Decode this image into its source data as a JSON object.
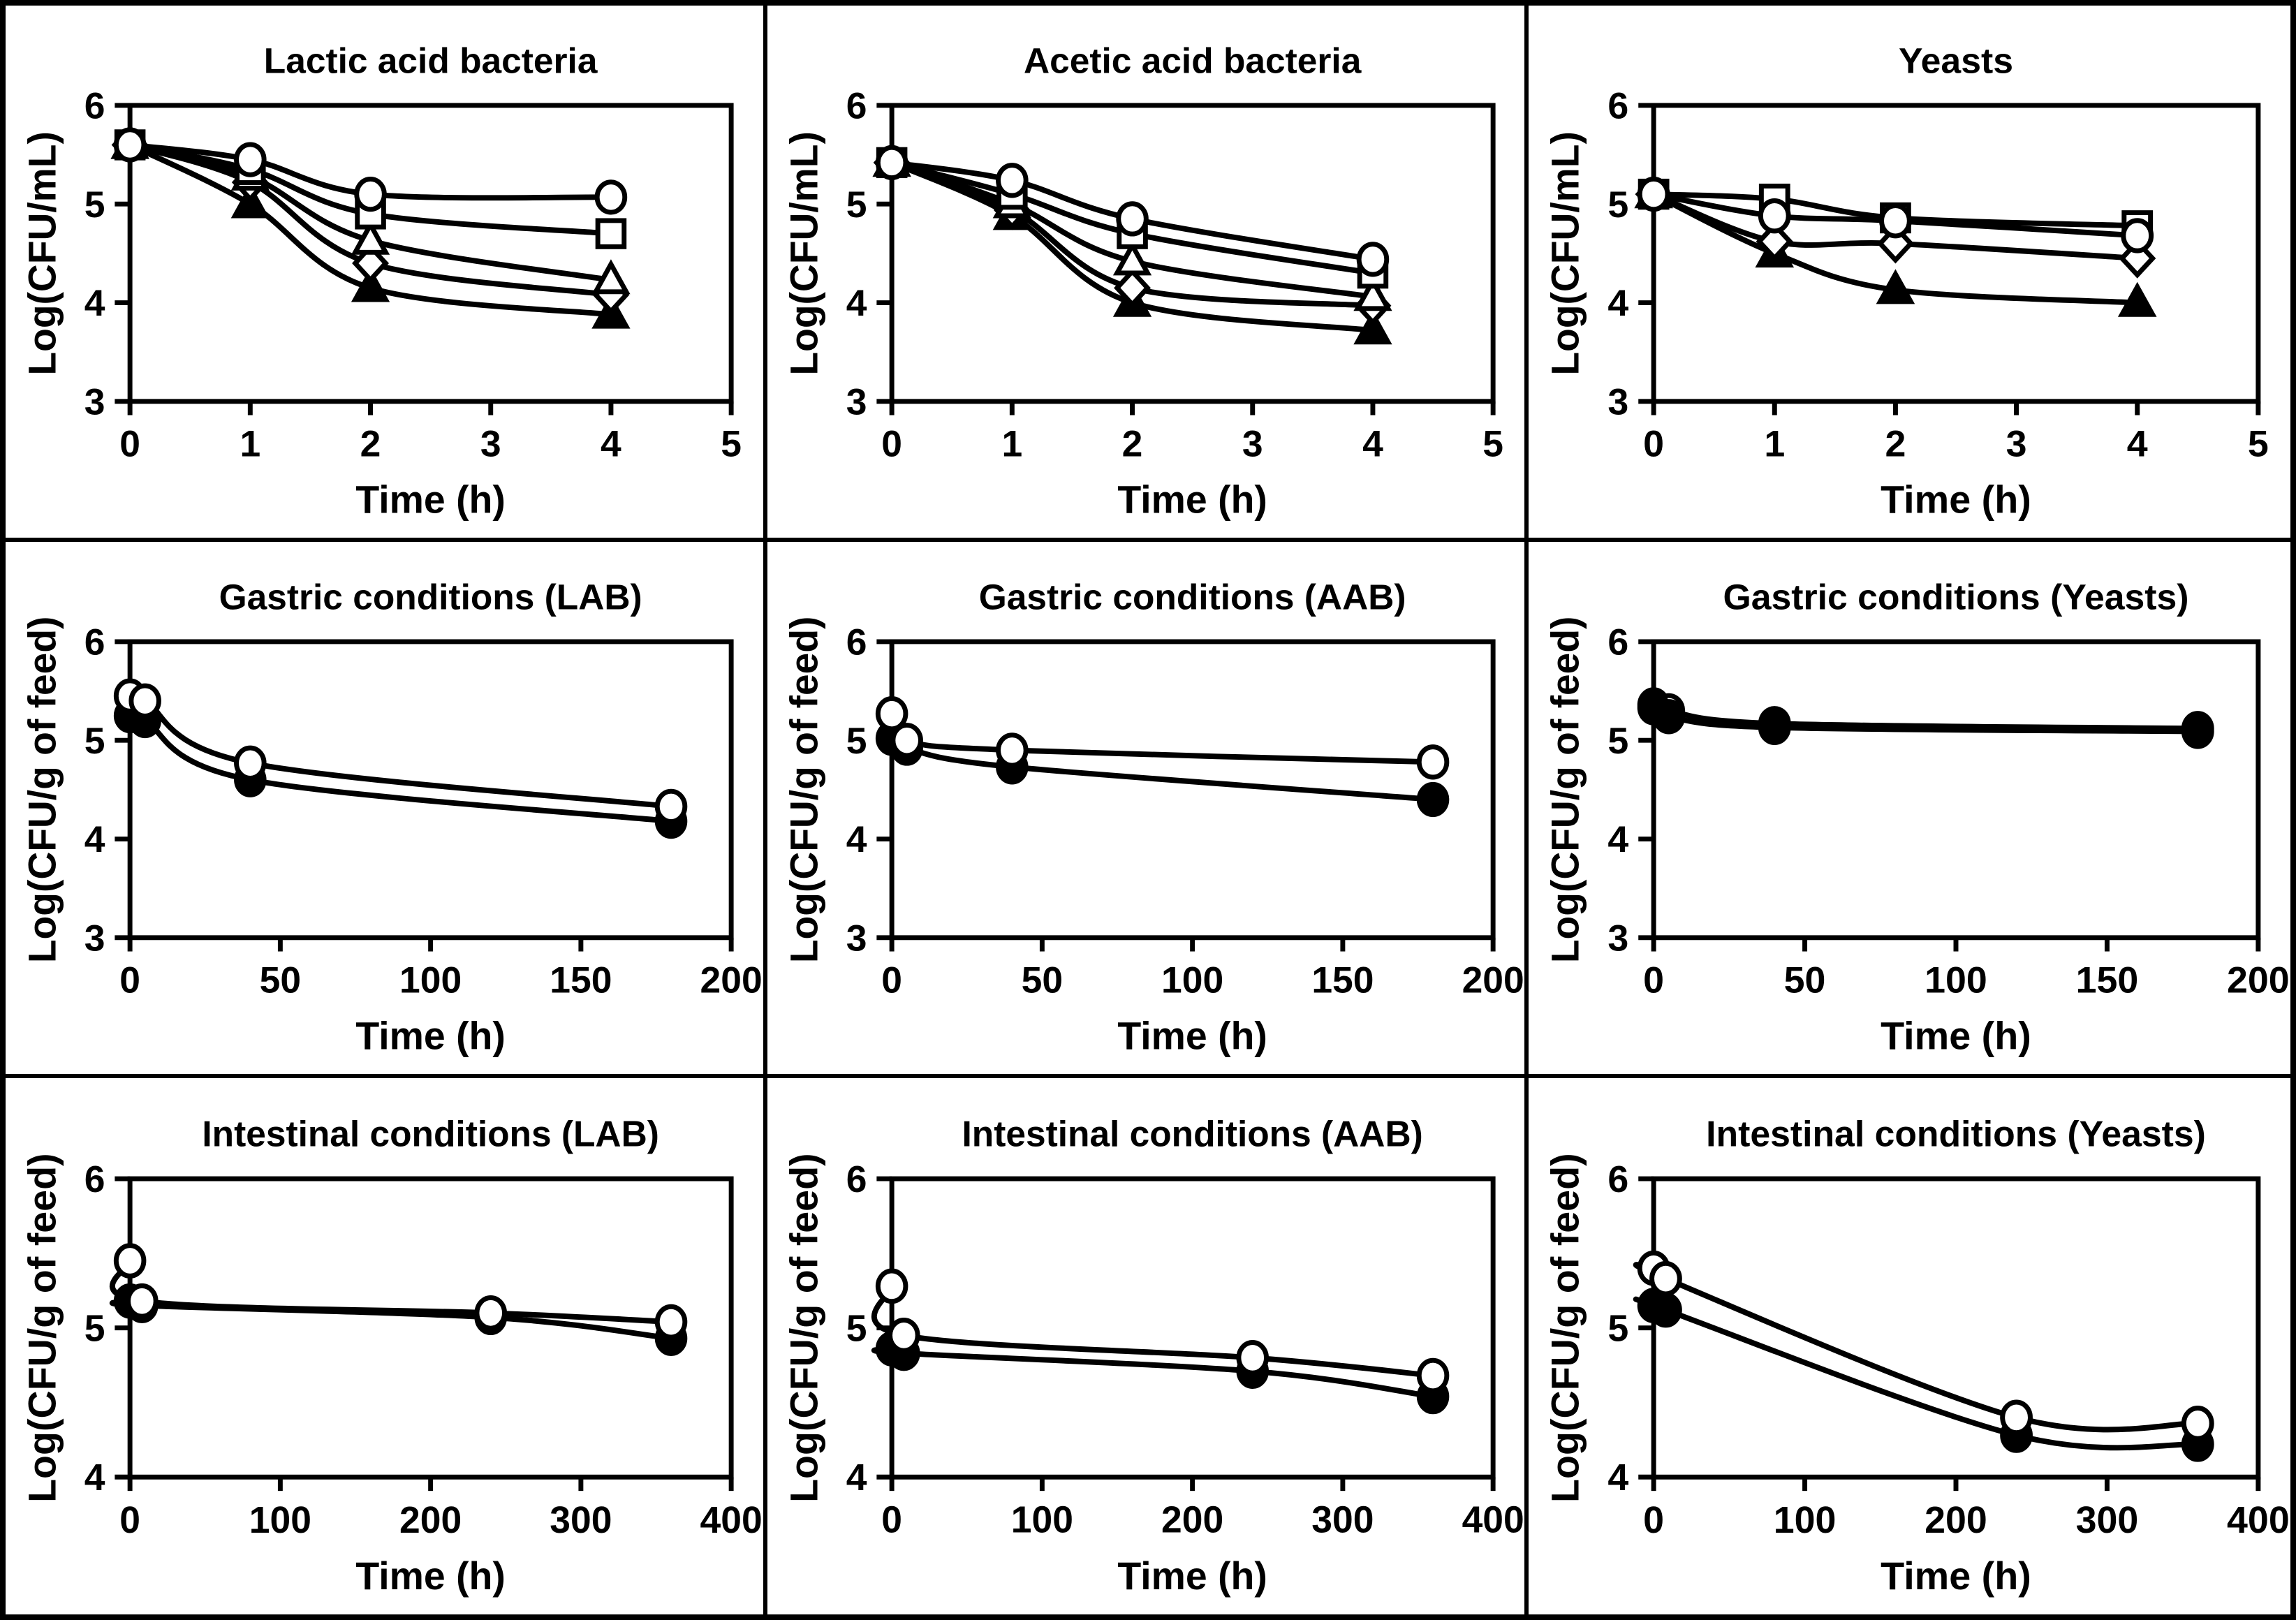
{
  "colors": {
    "foreground": "#000000",
    "background": "#ffffff"
  },
  "chart_data": [
    {
      "id": "lactic-acid-bacteria",
      "type": "line",
      "title": "Lactic acid bacteria",
      "xlabel": "Time (h)",
      "ylabel": "Log(CFU/mL)",
      "xlim": [
        0,
        5
      ],
      "ylim": [
        3,
        6
      ],
      "xticks": [
        0,
        1,
        2,
        3,
        4,
        5
      ],
      "yticks": [
        3,
        4,
        5,
        6
      ],
      "grid": false,
      "legend": "none",
      "x": [
        0,
        1,
        2,
        4
      ],
      "series": [
        {
          "name": "filled triangle",
          "marker": "triangle-filled",
          "values": [
            5.6,
            5.0,
            4.15,
            3.88
          ]
        },
        {
          "name": "open diamond",
          "marker": "diamond-open",
          "values": [
            5.6,
            5.22,
            4.4,
            4.08
          ]
        },
        {
          "name": "open triangle",
          "marker": "triangle-open",
          "values": [
            5.6,
            5.28,
            4.63,
            4.23
          ]
        },
        {
          "name": "open square",
          "marker": "square-open",
          "values": [
            5.6,
            5.35,
            4.9,
            4.7
          ]
        },
        {
          "name": "open circle",
          "marker": "circle-open",
          "values": [
            5.6,
            5.45,
            5.1,
            5.07
          ]
        }
      ]
    },
    {
      "id": "acetic-acid-bacteria",
      "type": "line",
      "title": "Acetic acid bacteria",
      "xlabel": "Time (h)",
      "ylabel": "Log(CFU/mL)",
      "xlim": [
        0,
        5
      ],
      "ylim": [
        3,
        6
      ],
      "xticks": [
        0,
        1,
        2,
        3,
        4,
        5
      ],
      "yticks": [
        3,
        4,
        5,
        6
      ],
      "grid": false,
      "legend": "none",
      "x": [
        0,
        1,
        2,
        4
      ],
      "series": [
        {
          "name": "filled triangle",
          "marker": "triangle-filled",
          "values": [
            5.42,
            4.88,
            4.0,
            3.72
          ]
        },
        {
          "name": "open diamond",
          "marker": "diamond-open",
          "values": [
            5.42,
            4.94,
            4.15,
            3.97
          ]
        },
        {
          "name": "open triangle",
          "marker": "triangle-open",
          "values": [
            5.42,
            5.0,
            4.42,
            4.06
          ]
        },
        {
          "name": "open square",
          "marker": "square-open",
          "values": [
            5.42,
            5.1,
            4.7,
            4.3
          ]
        },
        {
          "name": "open circle",
          "marker": "circle-open",
          "values": [
            5.42,
            5.24,
            4.85,
            4.44
          ]
        }
      ]
    },
    {
      "id": "yeasts",
      "type": "line",
      "title": "Yeasts",
      "xlabel": "Time (h)",
      "ylabel": "Log(CFU/mL)",
      "xlim": [
        0,
        5
      ],
      "ylim": [
        3,
        6
      ],
      "xticks": [
        0,
        1,
        2,
        3,
        4,
        5
      ],
      "yticks": [
        3,
        4,
        5,
        6
      ],
      "grid": false,
      "legend": "none",
      "x": [
        0,
        1,
        2,
        4
      ],
      "series": [
        {
          "name": "filled triangle",
          "marker": "triangle-filled",
          "values": [
            5.1,
            4.5,
            4.13,
            4.0
          ]
        },
        {
          "name": "open diamond",
          "marker": "diamond-open",
          "values": [
            5.1,
            4.62,
            4.6,
            4.45
          ]
        },
        {
          "name": "open square",
          "marker": "square-open",
          "values": [
            5.1,
            5.05,
            4.86,
            4.78
          ]
        },
        {
          "name": "open circle",
          "marker": "circle-open",
          "values": [
            5.1,
            4.88,
            4.83,
            4.68
          ]
        }
      ]
    },
    {
      "id": "gastric-conditions-lab",
      "type": "line",
      "title": "Gastric conditions (LAB)",
      "xlabel": "Time (h)",
      "ylabel": "Log(CFU/g of feed)",
      "xlim": [
        0,
        200
      ],
      "ylim": [
        3,
        6
      ],
      "xticks": [
        0,
        50,
        100,
        150,
        200
      ],
      "yticks": [
        3,
        4,
        5,
        6
      ],
      "grid": false,
      "legend": "none",
      "x": [
        0,
        5,
        40,
        180
      ],
      "series": [
        {
          "name": "filled circle",
          "marker": "circle-filled",
          "values": [
            5.25,
            5.2,
            4.6,
            4.18
          ]
        },
        {
          "name": "open circle",
          "marker": "circle-open",
          "values": [
            5.45,
            5.4,
            4.77,
            4.33
          ]
        }
      ]
    },
    {
      "id": "gastric-conditions-aab",
      "type": "line",
      "title": "Gastric conditions (AAB)",
      "xlabel": "Time (h)",
      "ylabel": "Log(CFU/g of feed)",
      "xlim": [
        0,
        200
      ],
      "ylim": [
        3,
        6
      ],
      "xticks": [
        0,
        50,
        100,
        150,
        200
      ],
      "yticks": [
        3,
        4,
        5,
        6
      ],
      "grid": false,
      "legend": "none",
      "x": [
        0,
        5,
        40,
        180
      ],
      "series": [
        {
          "name": "filled circle",
          "marker": "circle-filled",
          "values": [
            5.02,
            4.92,
            4.73,
            4.4
          ]
        },
        {
          "name": "open circle",
          "marker": "circle-open",
          "values": [
            5.27,
            5.0,
            4.9,
            4.78
          ]
        }
      ]
    },
    {
      "id": "gastric-conditions-yeasts",
      "type": "line",
      "title": "Gastric conditions (Yeasts)",
      "xlabel": "Time (h)",
      "ylabel": "Log(CFU/g of feed)",
      "xlim": [
        0,
        200
      ],
      "ylim": [
        3,
        6
      ],
      "xticks": [
        0,
        50,
        100,
        150,
        200
      ],
      "yticks": [
        3,
        4,
        5,
        6
      ],
      "grid": false,
      "legend": "none",
      "x": [
        0,
        5,
        40,
        180
      ],
      "series": [
        {
          "name": "open circle",
          "marker": "circle-open",
          "values": [
            5.36,
            5.3,
            5.17,
            5.12
          ]
        },
        {
          "name": "filled circle",
          "marker": "circle-filled",
          "values": [
            5.33,
            5.24,
            5.13,
            5.09
          ]
        }
      ]
    },
    {
      "id": "intestinal-conditions-lab",
      "type": "line",
      "title": "Intestinal conditions (LAB)",
      "xlabel": "Time (h)",
      "ylabel": "Log(CFU/g of feed)",
      "xlim": [
        0,
        400
      ],
      "ylim": [
        4,
        6
      ],
      "xticks": [
        0,
        100,
        200,
        300,
        400
      ],
      "yticks": [
        4,
        5,
        6
      ],
      "grid": false,
      "legend": "none",
      "x": [
        0,
        8,
        240,
        360
      ],
      "series": [
        {
          "name": "filled circle",
          "marker": "circle-filled",
          "values": [
            5.18,
            5.15,
            5.07,
            4.93
          ]
        },
        {
          "name": "open circle",
          "marker": "circle-open",
          "values": [
            5.45,
            5.18,
            5.1,
            5.04
          ]
        }
      ]
    },
    {
      "id": "intestinal-conditions-aab",
      "type": "line",
      "title": "Intestinal conditions (AAB)",
      "xlabel": "Time (h)",
      "ylabel": "Log(CFU/g of feed)",
      "xlim": [
        0,
        400
      ],
      "ylim": [
        4,
        6
      ],
      "xticks": [
        0,
        100,
        200,
        300,
        400
      ],
      "yticks": [
        4,
        5,
        6
      ],
      "grid": false,
      "legend": "none",
      "x": [
        0,
        8,
        240,
        360
      ],
      "series": [
        {
          "name": "filled circle",
          "marker": "circle-filled",
          "values": [
            4.86,
            4.83,
            4.71,
            4.54
          ]
        },
        {
          "name": "open circle",
          "marker": "circle-open",
          "values": [
            5.28,
            4.95,
            4.8,
            4.68
          ]
        }
      ]
    },
    {
      "id": "intestinal-conditions-yeasts",
      "type": "line",
      "title": "Intestinal conditions (Yeasts)",
      "xlabel": "Time (h)",
      "ylabel": "Log(CFU/g of feed)",
      "xlim": [
        0,
        400
      ],
      "ylim": [
        4,
        6
      ],
      "xticks": [
        0,
        100,
        200,
        300,
        400
      ],
      "yticks": [
        4,
        5,
        6
      ],
      "grid": false,
      "legend": "none",
      "x": [
        0,
        8,
        240,
        360
      ],
      "series": [
        {
          "name": "filled circle",
          "marker": "circle-filled",
          "values": [
            5.15,
            5.12,
            4.28,
            4.22
          ]
        },
        {
          "name": "open circle",
          "marker": "circle-open",
          "values": [
            5.4,
            5.33,
            4.4,
            4.36
          ]
        }
      ]
    }
  ]
}
